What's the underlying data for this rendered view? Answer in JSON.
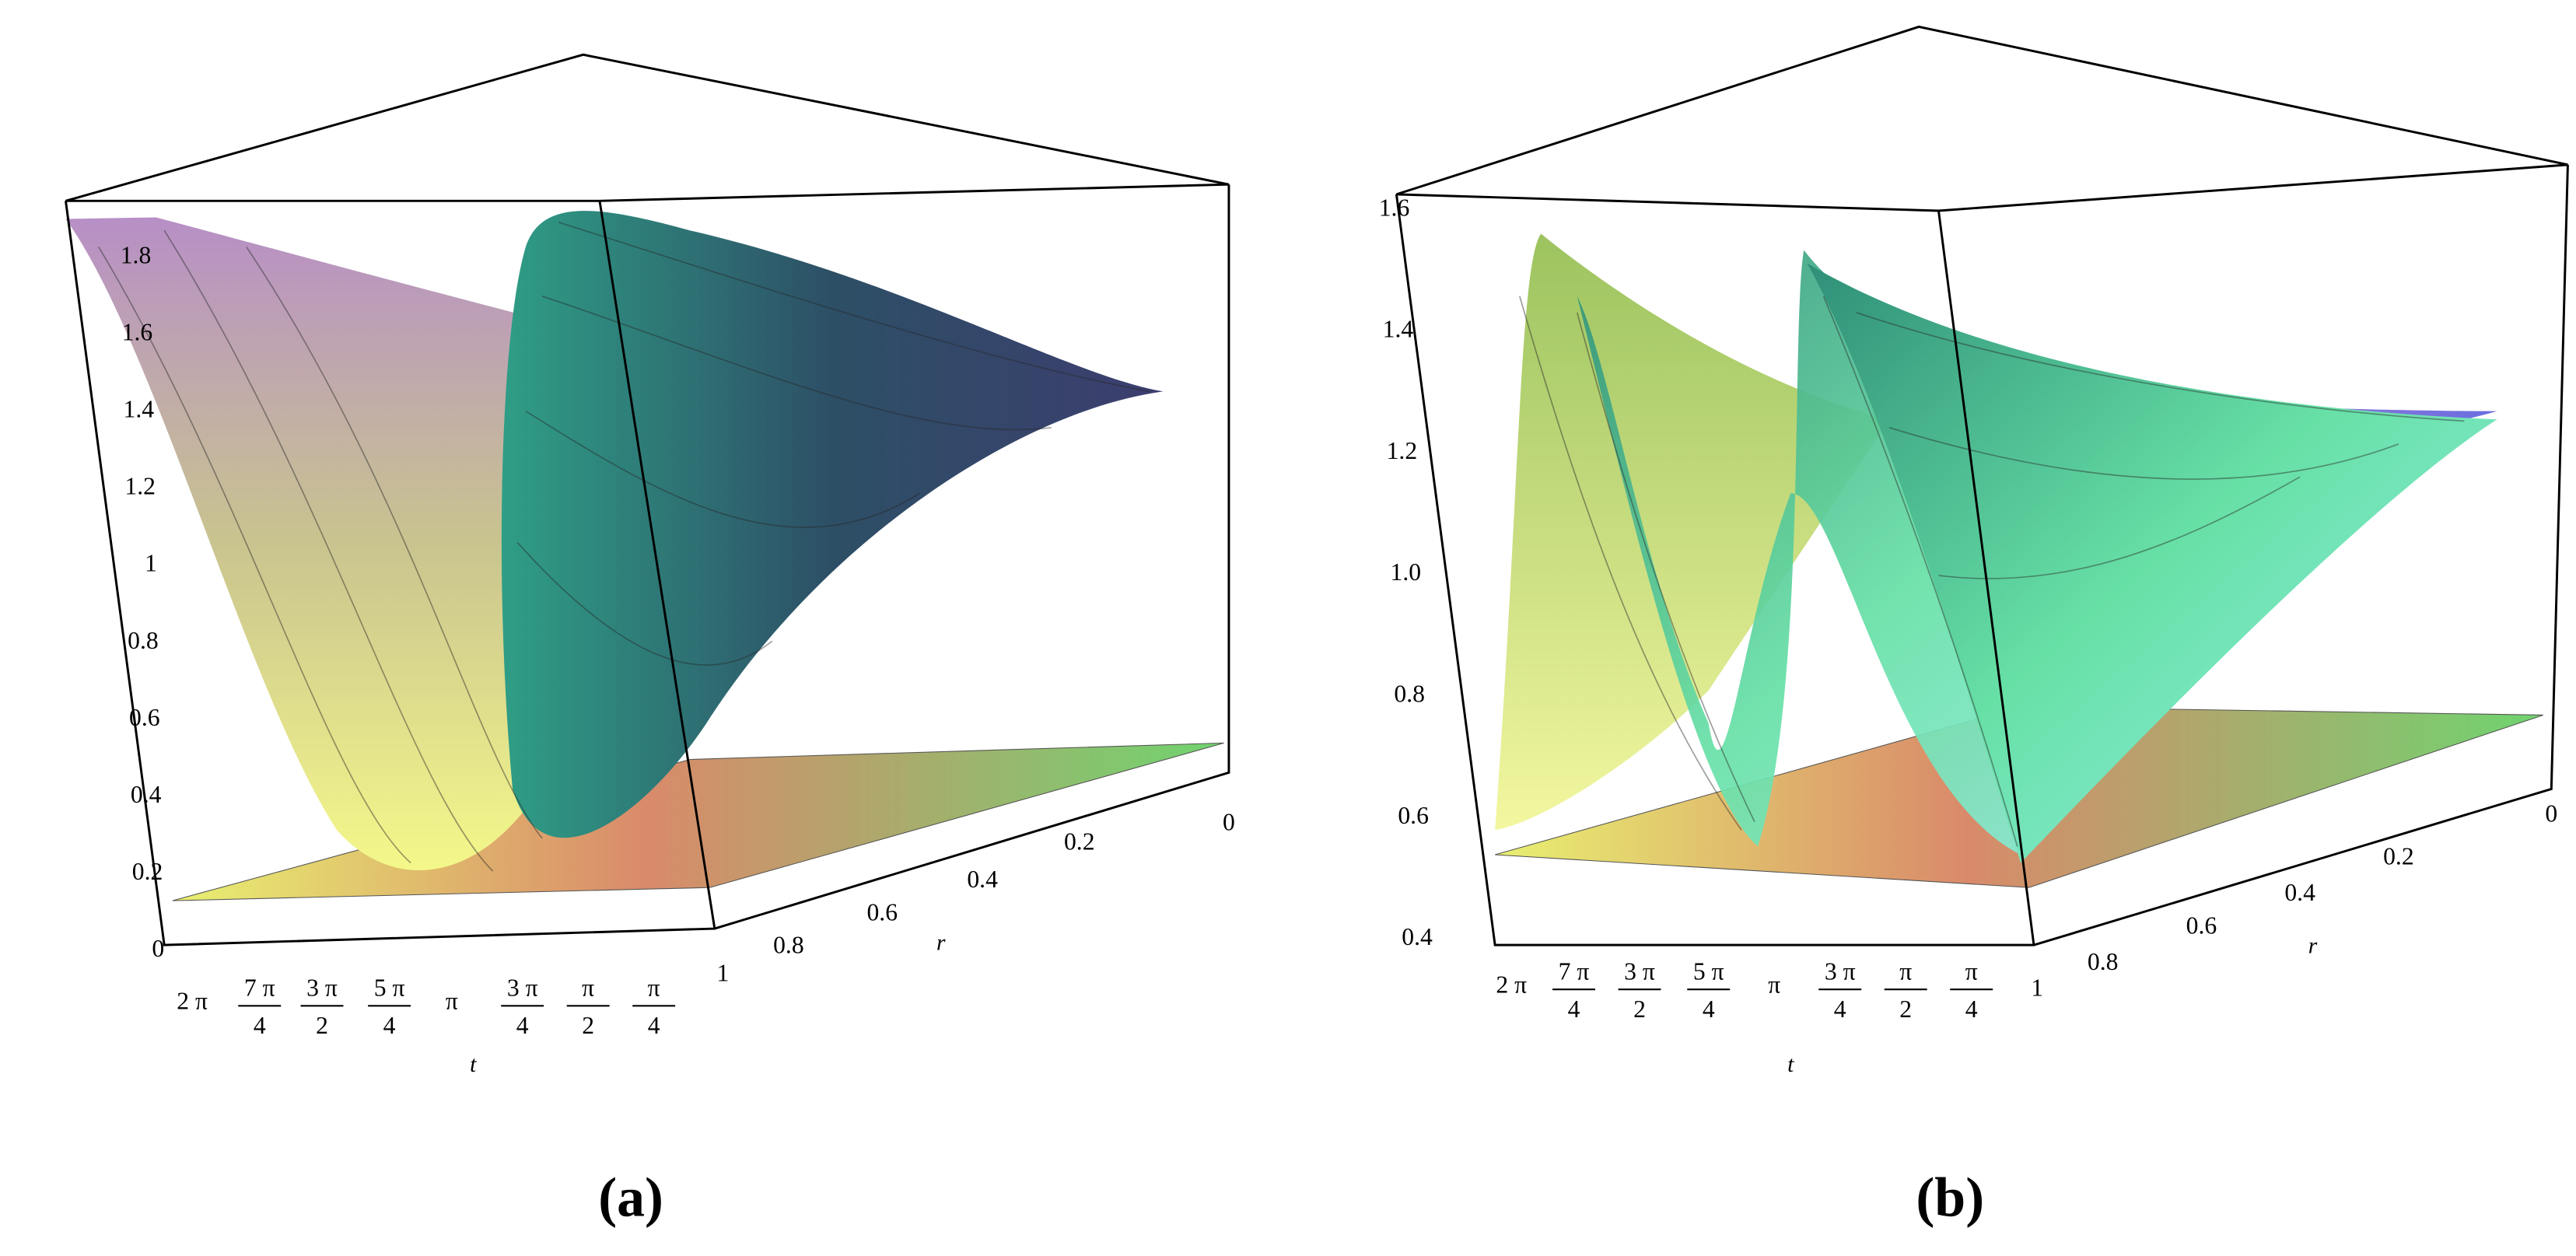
{
  "figure": {
    "panels": [
      {
        "caption": "(a)",
        "t_label": "t",
        "r_label": "r",
        "z_ticks": [
          "0",
          "0.2",
          "0.4",
          "0.6",
          "0.8",
          "1",
          "1.2",
          "1.4",
          "1.6",
          "1.8"
        ],
        "r_ticks": [
          "1",
          "0.8",
          "0.6",
          "0.4",
          "0.2",
          "0"
        ],
        "t_ticks": [
          {
            "num": "2 π"
          },
          {
            "num": "7 π",
            "den": "4"
          },
          {
            "num": "3 π",
            "den": "2"
          },
          {
            "num": "5 π",
            "den": "4"
          },
          {
            "num": "π"
          },
          {
            "num": "3 π",
            "den": "4"
          },
          {
            "num": "π",
            "den": "2"
          },
          {
            "num": "π",
            "den": "4"
          }
        ]
      },
      {
        "caption": "(b)",
        "t_label": "t",
        "r_label": "r",
        "z_ticks": [
          "0.4",
          "0.6",
          "0.8",
          "1.0",
          "1.2",
          "1.4",
          "1.6"
        ],
        "r_ticks": [
          "1",
          "0.8",
          "0.6",
          "0.4",
          "0.2",
          "0"
        ],
        "t_ticks": [
          {
            "num": "2 π"
          },
          {
            "num": "7 π",
            "den": "4"
          },
          {
            "num": "3 π",
            "den": "2"
          },
          {
            "num": "5 π",
            "den": "4"
          },
          {
            "num": "π"
          },
          {
            "num": "3 π",
            "den": "4"
          },
          {
            "num": "π",
            "den": "2"
          },
          {
            "num": "π",
            "den": "4"
          }
        ]
      }
    ]
  }
}
